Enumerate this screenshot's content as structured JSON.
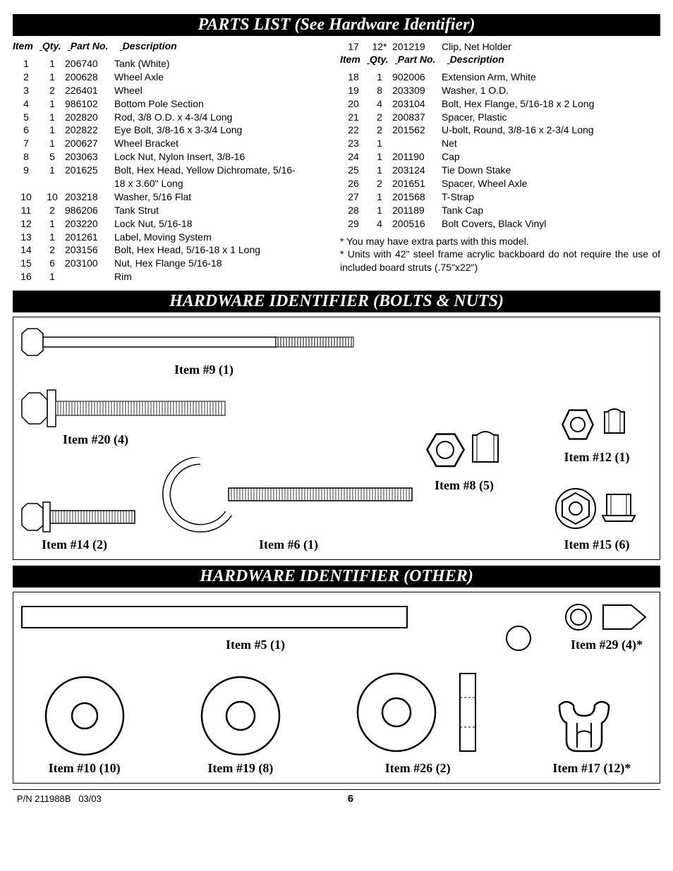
{
  "titles": {
    "parts_list": "PARTS LIST (See Hardware Identifier)",
    "hw_bolts": "HARDWARE IDENTIFIER (BOLTS & NUTS)",
    "hw_other": "HARDWARE IDENTIFIER (OTHER)"
  },
  "headers": {
    "item": "Item",
    "qty": "Qty.",
    "part_no": "Part No.",
    "description": "Description"
  },
  "parts_left": [
    {
      "item": "1",
      "qty": "1",
      "part": "206740",
      "desc": "Tank (White)"
    },
    {
      "item": "2",
      "qty": "1",
      "part": "200628",
      "desc": "Wheel Axle"
    },
    {
      "item": "3",
      "qty": "2",
      "part": "226401",
      "desc": "Wheel"
    },
    {
      "item": "4",
      "qty": "1",
      "part": "986102",
      "desc": "Bottom Pole Section"
    },
    {
      "item": "5",
      "qty": "1",
      "part": "202820",
      "desc": "Rod, 3/8 O.D. x 4-3/4 Long"
    },
    {
      "item": "6",
      "qty": "1",
      "part": "202822",
      "desc": "Eye Bolt, 3/8-16 x 3-3/4 Long"
    },
    {
      "item": "7",
      "qty": "1",
      "part": "200627",
      "desc": "Wheel Bracket"
    },
    {
      "item": "8",
      "qty": "5",
      "part": "203063",
      "desc": "Lock Nut, Nylon Insert, 3/8-16"
    },
    {
      "item": "9",
      "qty": "1",
      "part": "201625",
      "desc": "Bolt, Hex Head, Yellow Dichromate, 5/16-18 x 3.60\" Long"
    },
    {
      "item": "10",
      "qty": "10",
      "part": "203218",
      "desc": "Washer, 5/16 Flat"
    },
    {
      "item": "11",
      "qty": "2",
      "part": "986206",
      "desc": "Tank Strut"
    },
    {
      "item": "12",
      "qty": "1",
      "part": "203220",
      "desc": "Lock Nut, 5/16-18"
    },
    {
      "item": "13",
      "qty": "1",
      "part": "201261",
      "desc": "Label, Moving System"
    },
    {
      "item": "14",
      "qty": "2",
      "part": "203156",
      "desc": "Bolt, Hex Head, 5/16-18 x 1 Long"
    },
    {
      "item": "15",
      "qty": "6",
      "part": "203100",
      "desc": "Nut, Hex Flange 5/16-18"
    },
    {
      "item": "16",
      "qty": "1",
      "part": "",
      "desc": "Rim"
    }
  ],
  "parts_right_pre": [
    {
      "item": "17",
      "qty": "12*",
      "part": "201219",
      "desc": "Clip, Net Holder"
    }
  ],
  "parts_right": [
    {
      "item": "18",
      "qty": "1",
      "part": "902006",
      "desc": "Extension Arm, White"
    },
    {
      "item": "19",
      "qty": "8",
      "part": "203309",
      "desc": "Washer, 1 O.D."
    },
    {
      "item": "20",
      "qty": "4",
      "part": "203104",
      "desc": "Bolt, Hex Flange, 5/16-18 x 2 Long"
    },
    {
      "item": "21",
      "qty": "2",
      "part": "200837",
      "desc": "Spacer, Plastic"
    },
    {
      "item": "22",
      "qty": "2",
      "part": "201562",
      "desc": "U-bolt, Round, 3/8-16 x 2-3/4 Long"
    },
    {
      "item": "23",
      "qty": "1",
      "part": "",
      "desc": "Net"
    },
    {
      "item": "24",
      "qty": "1",
      "part": "201190",
      "desc": "Cap"
    },
    {
      "item": "25",
      "qty": "1",
      "part": "203124",
      "desc": "Tie Down Stake"
    },
    {
      "item": "26",
      "qty": "2",
      "part": "201651",
      "desc": "Spacer, Wheel Axle"
    },
    {
      "item": "27",
      "qty": "1",
      "part": "201568",
      "desc": "T-Strap"
    },
    {
      "item": "28",
      "qty": "1",
      "part": "201189",
      "desc": "Tank Cap"
    },
    {
      "item": "29",
      "qty": "4",
      "part": "200516",
      "desc": "Bolt Covers, Black Vinyl"
    }
  ],
  "notes_line1": "* You may have extra parts with this model.",
  "notes_line2": "* Units with 42\" steel frame acrylic backboard do not require the       use of included board struts (.75\"x22\")",
  "hw_labels": {
    "i9": "Item #9 (1)",
    "i20": "Item #20 (4)",
    "i14": "Item #14 (2)",
    "i6": "Item #6 (1)",
    "i8": "Item #8 (5)",
    "i12": "Item #12 (1)",
    "i15": "Item #15 (6)",
    "i5": "Item #5 (1)",
    "i29": "Item #29 (4)*",
    "i10": "Item #10 (10)",
    "i19": "Item #19 (8)",
    "i26": "Item #26 (2)",
    "i17": "Item #17 (12)*"
  },
  "footer": {
    "pn": "P/N 211988B",
    "date": "03/03",
    "page": "6"
  },
  "colors": {
    "black": "#000000",
    "white": "#ffffff"
  }
}
